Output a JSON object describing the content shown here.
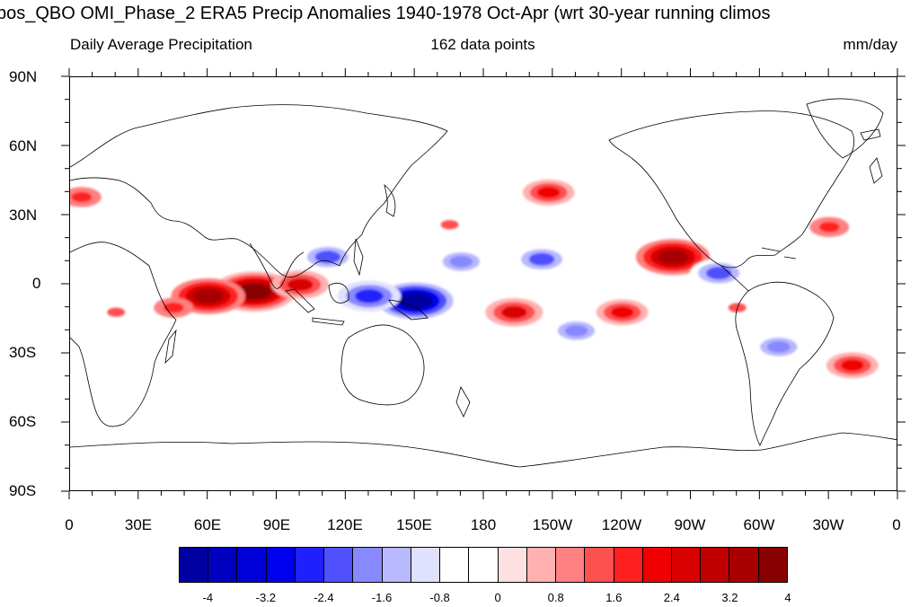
{
  "header": {
    "title": "bos_QBO OMI_Phase_2 ERA5 Precip Anomalies 1940-1978 Oct-Apr (wrt 30-year running climos",
    "left_subtitle": "Daily Average Precipitation",
    "center_subtitle": "162 data points",
    "right_subtitle": "mm/day"
  },
  "axes": {
    "y_labels": [
      "90N",
      "60N",
      "30N",
      "0",
      "30S",
      "60S",
      "90S"
    ],
    "x_labels": [
      "0",
      "30E",
      "60E",
      "90E",
      "120E",
      "150E",
      "180",
      "150W",
      "120W",
      "90W",
      "60W",
      "30W",
      "0"
    ]
  },
  "colorbar": {
    "colors": [
      "#0000a0",
      "#0000c0",
      "#0000d8",
      "#0000f0",
      "#2020ff",
      "#5050ff",
      "#8888ff",
      "#b8b8ff",
      "#e0e0ff",
      "#ffffff",
      "#ffffff",
      "#ffe0e0",
      "#ffb0b0",
      "#ff8080",
      "#ff5050",
      "#ff2020",
      "#f00000",
      "#d80000",
      "#c00000",
      "#a80000",
      "#880000"
    ],
    "labels": [
      "-4",
      "-3.2",
      "-2.4",
      "-1.6",
      "-0.8",
      "0",
      "0.8",
      "1.6",
      "2.4",
      "3.2",
      "4"
    ]
  },
  "chart_data": {
    "type": "heatmap",
    "title": "bos_QBO OMI_Phase_2 ERA5 Precip Anomalies 1940-1978 Oct-Apr (wrt 30-year running climos",
    "units": "mm/day",
    "n_points": 162,
    "x_range": [
      0,
      360
    ],
    "y_range": [
      -90,
      90
    ],
    "levels": [
      -4,
      -3.6,
      -3.2,
      -2.8,
      -2.4,
      -2.0,
      -1.6,
      -1.2,
      -0.8,
      -0.4,
      0,
      0.4,
      0.8,
      1.2,
      1.6,
      2.0,
      2.4,
      2.8,
      3.2,
      3.6,
      4
    ],
    "anomaly_regions": [
      {
        "lon": 80,
        "lat": -3,
        "value": 3.6
      },
      {
        "lon": 60,
        "lat": -5,
        "value": 3.2
      },
      {
        "lon": 100,
        "lat": 0,
        "value": 2.4
      },
      {
        "lon": 45,
        "lat": -10,
        "value": 1.6
      },
      {
        "lon": 150,
        "lat": -7,
        "value": -4.0
      },
      {
        "lon": 130,
        "lat": -5,
        "value": -2.8
      },
      {
        "lon": 112,
        "lat": 12,
        "value": -2.4
      },
      {
        "lon": 170,
        "lat": 10,
        "value": -2.0
      },
      {
        "lon": 205,
        "lat": 11,
        "value": -2.4
      },
      {
        "lon": 262,
        "lat": 12,
        "value": 3.2
      },
      {
        "lon": 282,
        "lat": 5,
        "value": -2.4
      },
      {
        "lon": 240,
        "lat": -12,
        "value": 2.0
      },
      {
        "lon": 220,
        "lat": -20,
        "value": -2.0
      },
      {
        "lon": 193,
        "lat": -12,
        "value": 2.4
      },
      {
        "lon": 208,
        "lat": 40,
        "value": 2.0
      },
      {
        "lon": 308,
        "lat": -27,
        "value": -2.0
      },
      {
        "lon": 340,
        "lat": -35,
        "value": 2.0
      },
      {
        "lon": 330,
        "lat": 25,
        "value": 1.6
      },
      {
        "lon": 290,
        "lat": -10,
        "value": 1.2
      },
      {
        "lon": 20,
        "lat": -12,
        "value": 1.2
      },
      {
        "lon": 165,
        "lat": 26,
        "value": 1.2
      },
      {
        "lon": 5,
        "lat": 38,
        "value": 1.6
      }
    ]
  }
}
